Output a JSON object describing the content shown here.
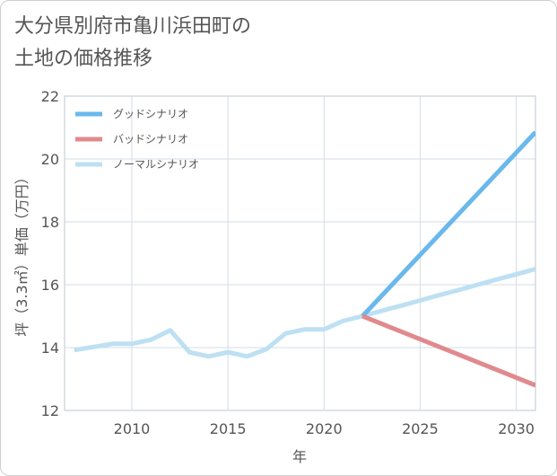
{
  "title_lines": [
    "大分県別府市亀川浜田町の",
    "土地の価格推移"
  ],
  "chart_data": {
    "type": "line",
    "title": "大分県別府市亀川浜田町の土地の価格推移",
    "xlabel": "年",
    "ylabel": "坪（3.3㎡）単価（万円）",
    "xlim": [
      2006.5,
      2031
    ],
    "ylim": [
      12,
      22
    ],
    "xticks": [
      2010,
      2015,
      2020,
      2025,
      2030
    ],
    "yticks": [
      12,
      14,
      16,
      18,
      20,
      22
    ],
    "grid": true,
    "legend_position": "top-left",
    "series": [
      {
        "name": "グッドシナリオ",
        "color": "#6ab8ec",
        "x": [
          2022,
          2031
        ],
        "y": [
          15.0,
          20.85
        ]
      },
      {
        "name": "バッドシナリオ",
        "color": "#e08a8e",
        "x": [
          2022,
          2031
        ],
        "y": [
          15.0,
          12.8
        ]
      },
      {
        "name": "ノーマルシナリオ",
        "color": "#bde0f2",
        "x": [
          2007,
          2008,
          2009,
          2010,
          2011,
          2012,
          2013,
          2014,
          2015,
          2016,
          2017,
          2018,
          2019,
          2020,
          2021,
          2022,
          2023,
          2024,
          2025,
          2026,
          2027,
          2028,
          2029,
          2030,
          2031
        ],
        "y": [
          13.92,
          14.02,
          14.12,
          14.12,
          14.25,
          14.55,
          13.85,
          13.72,
          13.85,
          13.72,
          13.95,
          14.45,
          14.58,
          14.58,
          14.85,
          15.0,
          15.17,
          15.33,
          15.5,
          15.67,
          15.83,
          16.0,
          16.17,
          16.33,
          16.5
        ]
      }
    ]
  }
}
